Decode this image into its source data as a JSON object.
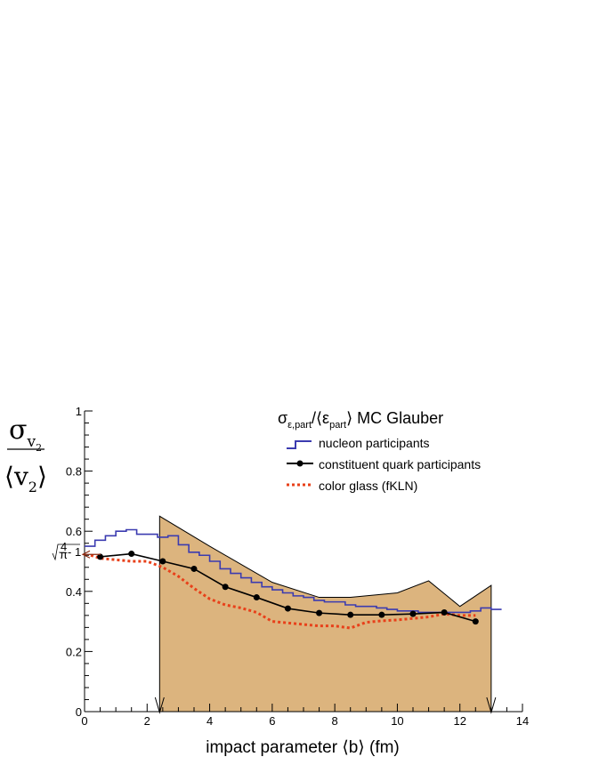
{
  "chart_data": {
    "type": "line",
    "title": "",
    "xlabel": "impact parameter ⟨b⟩ (fm)",
    "ylabel": {
      "num_base": "σ",
      "num_sub": "v",
      "num_subsub": "2",
      "den_open": "⟨",
      "den_base": "v",
      "den_sub": "2",
      "den_close": "⟩"
    },
    "xlim": [
      0,
      14
    ],
    "ylim": [
      0,
      1
    ],
    "x_ticks": [
      "0",
      "2",
      "4",
      "6",
      "8",
      "10",
      "12",
      "14"
    ],
    "y_ticks": [
      "0",
      "0.2",
      "0.4",
      "0.6",
      "0.8",
      "1"
    ],
    "y_marker": {
      "value": 0.523,
      "label_num": "4",
      "label_den": "π",
      "label_rest": "- 1"
    },
    "legend": {
      "position": "top-right",
      "title_parts": {
        "base1": "σ",
        "sub1": "ε,part",
        "mid": "/⟨ε",
        "sub2": "part",
        "end": "⟩ MC Glauber"
      }
    },
    "colors": {
      "nucleon": "#3b3bb0",
      "quark": "#000000",
      "cgc": "#e8401a",
      "band": "#dcb47e",
      "band_edge": "#000000"
    },
    "shaded_band": {
      "x": [
        2.4,
        2.4,
        4,
        6,
        7.5,
        8.5,
        10,
        11,
        12,
        13,
        13
      ],
      "y": [
        0,
        0.65,
        0.55,
        0.43,
        0.38,
        0.38,
        0.395,
        0.435,
        0.35,
        0.42,
        0
      ],
      "arrows_x": [
        2.4,
        13
      ]
    },
    "series": [
      {
        "name": "nucleon participants",
        "style": "step",
        "bin_edges": [
          0,
          0.333,
          0.667,
          1,
          1.333,
          1.667,
          2,
          2.333,
          2.667,
          3,
          3.333,
          3.667,
          4,
          4.333,
          4.667,
          5,
          5.333,
          5.667,
          6,
          6.333,
          6.667,
          7,
          7.333,
          7.667,
          8,
          8.333,
          8.667,
          9,
          9.333,
          9.667,
          10,
          10.333,
          10.667,
          11,
          11.333,
          11.667,
          12,
          12.333,
          12.667,
          13,
          13.333
        ],
        "values": [
          0.55,
          0.57,
          0.585,
          0.6,
          0.605,
          0.59,
          0.59,
          0.58,
          0.585,
          0.555,
          0.53,
          0.52,
          0.5,
          0.475,
          0.46,
          0.445,
          0.43,
          0.415,
          0.405,
          0.395,
          0.385,
          0.38,
          0.37,
          0.365,
          0.365,
          0.355,
          0.35,
          0.35,
          0.345,
          0.34,
          0.335,
          0.335,
          0.33,
          0.33,
          0.33,
          0.33,
          0.33,
          0.335,
          0.345,
          0.34
        ]
      },
      {
        "name": "constituent quark participants",
        "style": "line-markers",
        "x": [
          0.5,
          1.5,
          2.5,
          3.5,
          4.5,
          5.5,
          6.5,
          7.5,
          8.5,
          9.5,
          10.5,
          11.5,
          12.5
        ],
        "y": [
          0.515,
          0.525,
          0.5,
          0.475,
          0.415,
          0.38,
          0.343,
          0.328,
          0.322,
          0.322,
          0.325,
          0.33,
          0.3
        ]
      },
      {
        "name": "color glass (fKLN)",
        "style": "dotted",
        "x": [
          0.2,
          0.5,
          1,
          1.5,
          2,
          2.5,
          3,
          3.5,
          4,
          4.5,
          5,
          5.5,
          6,
          6.5,
          7,
          7.5,
          8,
          8.5,
          9,
          9.5,
          10,
          10.5,
          11,
          11.5,
          12,
          12.5
        ],
        "y": [
          0.52,
          0.51,
          0.505,
          0.5,
          0.5,
          0.48,
          0.45,
          0.41,
          0.375,
          0.355,
          0.345,
          0.33,
          0.3,
          0.295,
          0.29,
          0.285,
          0.285,
          0.278,
          0.297,
          0.302,
          0.305,
          0.31,
          0.315,
          0.325,
          0.32,
          0.32
        ]
      }
    ]
  }
}
